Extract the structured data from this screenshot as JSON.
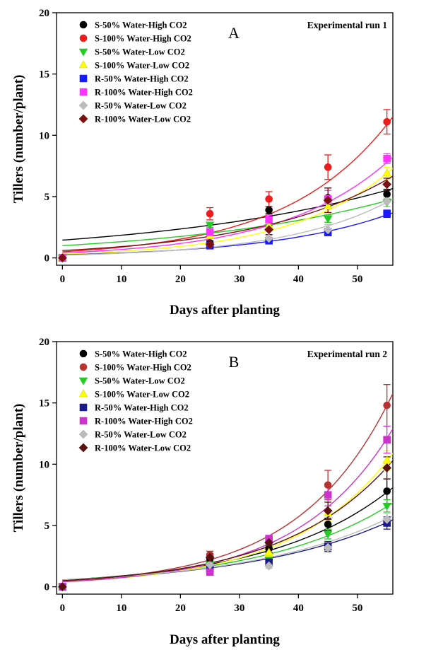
{
  "chart_data": [
    {
      "type": "scatter",
      "panel_label": "A",
      "annotation": "Experimental run 1",
      "xlabel": "Days after planting",
      "ylabel": "Tillers (number/plant)",
      "xlim": [
        -1,
        56
      ],
      "ylim": [
        -0.6,
        20
      ],
      "xticks": [
        0,
        10,
        20,
        30,
        40,
        50
      ],
      "yticks": [
        0,
        5,
        10,
        15,
        20
      ],
      "legend_position": "top-left",
      "x": [
        0,
        25,
        35,
        45,
        55
      ],
      "series": [
        {
          "name": "S-50% Water-High CO2",
          "color": "#000000",
          "marker": "circle",
          "values": [
            0,
            1.2,
            3.9,
            4.9,
            5.2
          ],
          "errors": [
            0,
            0.2,
            0.3,
            0.8,
            0.4
          ],
          "fit": [
            1.45,
            0.0243
          ]
        },
        {
          "name": "S-100% Water-High CO2",
          "color": "#ee1c1c",
          "marker": "circle",
          "values": [
            0,
            3.6,
            4.8,
            7.4,
            11.1
          ],
          "errors": [
            0,
            0.5,
            0.6,
            1.0,
            1.0
          ],
          "fit": [
            0.5,
            0.056
          ]
        },
        {
          "name": "S-50% Water-Low CO2",
          "color": "#22cc22",
          "marker": "triangle-down",
          "values": [
            0,
            2.7,
            2.5,
            3.2,
            4.5
          ],
          "errors": [
            0,
            0.2,
            0.2,
            0.3,
            0.3
          ],
          "fit": [
            1.0,
            0.028
          ]
        },
        {
          "name": "S-100% Water-Low CO2",
          "color": "#ffff00",
          "marker": "triangle-up",
          "values": [
            0,
            1.8,
            2.6,
            4.2,
            6.9
          ],
          "errors": [
            0,
            0.2,
            0.3,
            0.5,
            0.5
          ],
          "fit": [
            0.3,
            0.057
          ]
        },
        {
          "name": "R-50% Water-High CO2",
          "color": "#1a1aff",
          "marker": "square",
          "values": [
            0,
            1.0,
            1.4,
            2.1,
            3.6
          ],
          "errors": [
            0,
            0.1,
            0.2,
            0.3,
            0.3
          ],
          "fit": [
            0.25,
            0.048
          ]
        },
        {
          "name": "R-100% Water-High CO2",
          "color": "#ff33ff",
          "marker": "square",
          "values": [
            0,
            2.1,
            3.1,
            4.8,
            8.1
          ],
          "errors": [
            0,
            0.3,
            0.4,
            0.7,
            0.4
          ],
          "fit": [
            0.4,
            0.054
          ]
        },
        {
          "name": "R-50% Water-Low CO2",
          "color": "#bbbbbb",
          "marker": "diamond",
          "values": [
            0,
            1.1,
            1.6,
            2.3,
            4.6
          ],
          "errors": [
            0,
            0.2,
            0.2,
            0.4,
            0.4
          ],
          "fit": [
            0.22,
            0.055
          ]
        },
        {
          "name": "R-100% Water-Low CO2",
          "color": "#7b1010",
          "marker": "diamond",
          "values": [
            0,
            1.1,
            2.3,
            4.7,
            6.0
          ],
          "errors": [
            0,
            0.2,
            0.4,
            1.0,
            0.5
          ],
          "fit": [
            0.6,
            0.043
          ]
        }
      ]
    },
    {
      "type": "scatter",
      "panel_label": "B",
      "annotation": "Experimental run 2",
      "xlabel": "Days after planting",
      "ylabel": "Tillers (number/plant)",
      "xlim": [
        -1,
        56
      ],
      "ylim": [
        -0.6,
        20
      ],
      "xticks": [
        0,
        10,
        20,
        30,
        40,
        50
      ],
      "yticks": [
        0,
        5,
        10,
        15,
        20
      ],
      "legend_position": "top-left",
      "x": [
        0,
        25,
        35,
        45,
        55
      ],
      "series": [
        {
          "name": "S-50% Water-High CO2",
          "color": "#000000",
          "marker": "circle",
          "values": [
            0,
            2.3,
            3.1,
            5.1,
            7.8
          ],
          "errors": [
            0,
            0.3,
            0.3,
            0.5,
            1.0
          ],
          "fit": [
            0.55,
            0.048
          ]
        },
        {
          "name": "S-100% Water-High CO2",
          "color": "#b83232",
          "marker": "circle",
          "values": [
            0,
            2.6,
            3.7,
            8.3,
            14.8
          ],
          "errors": [
            0,
            0.3,
            0.4,
            1.2,
            1.7
          ],
          "fit": [
            0.45,
            0.0635
          ]
        },
        {
          "name": "S-50% Water-Low CO2",
          "color": "#22cc22",
          "marker": "triangle-down",
          "values": [
            0,
            1.8,
            2.2,
            4.3,
            6.6
          ],
          "errors": [
            0,
            0.2,
            0.3,
            0.4,
            0.5
          ],
          "fit": [
            0.55,
            0.045
          ]
        },
        {
          "name": "S-100% Water-Low CO2",
          "color": "#ffff00",
          "marker": "triangle-up",
          "values": [
            0,
            1.5,
            2.8,
            6.0,
            10.3
          ],
          "errors": [
            0,
            0.2,
            0.3,
            0.6,
            0.8
          ],
          "fit": [
            0.4,
            0.059
          ]
        },
        {
          "name": "R-50% Water-High CO2",
          "color": "#1a1a8c",
          "marker": "square",
          "values": [
            0,
            1.4,
            2.0,
            3.3,
            5.2
          ],
          "errors": [
            0,
            0.2,
            0.2,
            0.4,
            0.5
          ],
          "fit": [
            0.55,
            0.041
          ]
        },
        {
          "name": "R-100% Water-High CO2",
          "color": "#cc33cc",
          "marker": "square",
          "values": [
            0,
            1.2,
            3.9,
            7.5,
            12.0
          ],
          "errors": [
            0,
            0.2,
            0.3,
            0.9,
            1.1
          ],
          "fit": [
            0.4,
            0.062
          ]
        },
        {
          "name": "R-50% Water-Low CO2",
          "color": "#bbbbbb",
          "marker": "diamond",
          "values": [
            0,
            1.8,
            1.7,
            3.2,
            5.5
          ],
          "errors": [
            0,
            0.2,
            0.2,
            0.4,
            0.5
          ],
          "fit": [
            0.55,
            0.042
          ]
        },
        {
          "name": "R-100% Water-Low CO2",
          "color": "#5a1010",
          "marker": "diamond",
          "values": [
            0,
            2.4,
            3.6,
            6.2,
            9.7
          ],
          "errors": [
            0,
            0.3,
            0.4,
            0.7,
            0.9
          ],
          "fit": [
            0.5,
            0.054
          ]
        }
      ]
    }
  ]
}
